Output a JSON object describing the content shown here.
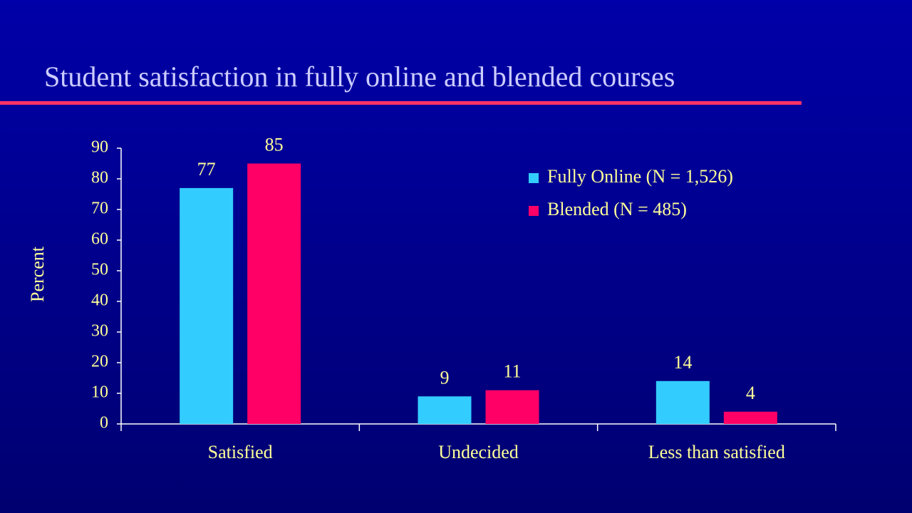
{
  "chart_data": {
    "type": "bar",
    "title": "Student satisfaction in fully online and blended courses",
    "y_label": "Percent",
    "categories": [
      "Satisfied",
      "Undecided",
      "Less than satisfied"
    ],
    "series": [
      {
        "name": "Fully Online (N = 1,526)",
        "color": "#33ccff",
        "values": [
          77,
          9,
          14
        ]
      },
      {
        "name": "Blended (N = 485)",
        "color": "#ff0066",
        "values": [
          85,
          11,
          4
        ]
      }
    ],
    "ylim": [
      0,
      90
    ],
    "yticks": [
      0,
      10,
      20,
      30,
      40,
      50,
      60,
      70,
      80,
      90
    ],
    "grid": false,
    "legend": "upper-right"
  }
}
